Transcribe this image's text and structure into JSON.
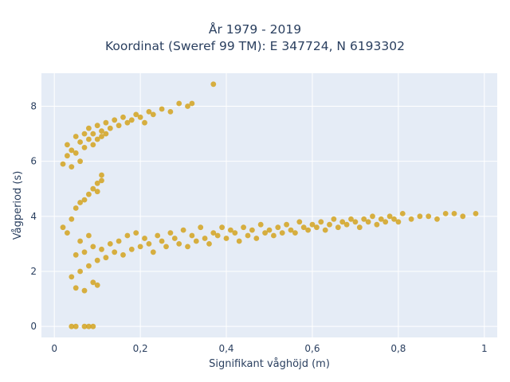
{
  "chart_data": {
    "type": "scatter",
    "title": "År 1979 - 2019",
    "subtitle": "Koordinat (Sweref 99 TM): E 347724, N 6193302",
    "xlabel": "Signifikant våghöjd (m)",
    "ylabel": "Vågperiod (s)",
    "xlim": [
      -0.03,
      1.03
    ],
    "ylim": [
      -0.4,
      9.2
    ],
    "xticks": [
      0,
      0.2,
      0.4,
      0.6,
      0.8,
      1
    ],
    "xtick_labels": [
      "0",
      "0,2",
      "0,4",
      "0,6",
      "0,8",
      "1"
    ],
    "yticks": [
      0,
      2,
      4,
      6,
      8
    ],
    "ytick_labels": [
      "0",
      "2",
      "4",
      "6",
      "8"
    ],
    "grid": true,
    "marker_color": "#d4a31f",
    "plot_background": "#e5ecf6",
    "series": [
      {
        "x": [
          0.04,
          0.05,
          0.05,
          0.06,
          0.06,
          0.07,
          0.07,
          0.08,
          0.08,
          0.09,
          0.09,
          0.1,
          0.1,
          0.11,
          0.12,
          0.13,
          0.14,
          0.15,
          0.16,
          0.17,
          0.18,
          0.19,
          0.2,
          0.21,
          0.22,
          0.23,
          0.24,
          0.25,
          0.26,
          0.27,
          0.28,
          0.29,
          0.3,
          0.31,
          0.32,
          0.33,
          0.34,
          0.35,
          0.36,
          0.37,
          0.38,
          0.39,
          0.4,
          0.41,
          0.42,
          0.43,
          0.44,
          0.45,
          0.46,
          0.47,
          0.48,
          0.49,
          0.5,
          0.51,
          0.52,
          0.53,
          0.54,
          0.55,
          0.56,
          0.57,
          0.58,
          0.59,
          0.6,
          0.61,
          0.62,
          0.63,
          0.64,
          0.65,
          0.66,
          0.67,
          0.68,
          0.69,
          0.7,
          0.71,
          0.72,
          0.73,
          0.74,
          0.75,
          0.76,
          0.77,
          0.78,
          0.79,
          0.8,
          0.81,
          0.83,
          0.85,
          0.87,
          0.89,
          0.91,
          0.93,
          0.95,
          0.98
        ],
        "y": [
          1.8,
          2.6,
          1.4,
          3.1,
          2.0,
          2.7,
          1.3,
          3.3,
          2.2,
          1.6,
          2.9,
          2.4,
          1.5,
          2.8,
          2.5,
          3.0,
          2.7,
          3.1,
          2.6,
          3.3,
          2.8,
          3.4,
          2.9,
          3.2,
          3.0,
          2.7,
          3.3,
          3.1,
          2.9,
          3.4,
          3.2,
          3.0,
          3.5,
          2.9,
          3.3,
          3.1,
          3.6,
          3.2,
          3.0,
          3.4,
          3.3,
          3.6,
          3.2,
          3.5,
          3.4,
          3.1,
          3.6,
          3.3,
          3.5,
          3.2,
          3.7,
          3.4,
          3.5,
          3.3,
          3.6,
          3.4,
          3.7,
          3.5,
          3.4,
          3.8,
          3.6,
          3.5,
          3.7,
          3.6,
          3.8,
          3.5,
          3.7,
          3.9,
          3.6,
          3.8,
          3.7,
          3.9,
          3.8,
          3.6,
          3.9,
          3.8,
          4.0,
          3.7,
          3.9,
          3.8,
          4.0,
          3.9,
          3.8,
          4.1,
          3.9,
          4.0,
          4.0,
          3.9,
          4.1,
          4.1,
          4.0,
          4.1
        ]
      },
      {
        "x": [
          0.02,
          0.03,
          0.03,
          0.04,
          0.04,
          0.05,
          0.05,
          0.06,
          0.06,
          0.07,
          0.07,
          0.08,
          0.08,
          0.09,
          0.09,
          0.1,
          0.1,
          0.11,
          0.11,
          0.12,
          0.12,
          0.13,
          0.14,
          0.15,
          0.16,
          0.17,
          0.18,
          0.19,
          0.2,
          0.21,
          0.22,
          0.23,
          0.25,
          0.27,
          0.29,
          0.31,
          0.32,
          0.37
        ],
        "y": [
          5.9,
          6.2,
          6.6,
          6.4,
          5.8,
          6.9,
          6.3,
          6.7,
          6.0,
          7.0,
          6.5,
          6.8,
          7.2,
          6.6,
          7.0,
          7.3,
          6.8,
          7.1,
          6.9,
          7.4,
          7.0,
          7.2,
          7.5,
          7.3,
          7.6,
          7.4,
          7.5,
          7.7,
          7.6,
          7.4,
          7.8,
          7.7,
          7.9,
          7.8,
          8.1,
          8.0,
          8.1,
          8.8
        ]
      },
      {
        "x": [
          0.02,
          0.03,
          0.04,
          0.05,
          0.06,
          0.07,
          0.08,
          0.09,
          0.1,
          0.1,
          0.11,
          0.11
        ],
        "y": [
          3.6,
          3.4,
          3.9,
          4.3,
          4.5,
          4.6,
          4.8,
          5.0,
          5.2,
          4.9,
          5.5,
          5.3
        ]
      },
      {
        "x": [
          0.04,
          0.05,
          0.07,
          0.08,
          0.09
        ],
        "y": [
          0,
          0,
          0,
          0,
          0
        ]
      }
    ]
  }
}
